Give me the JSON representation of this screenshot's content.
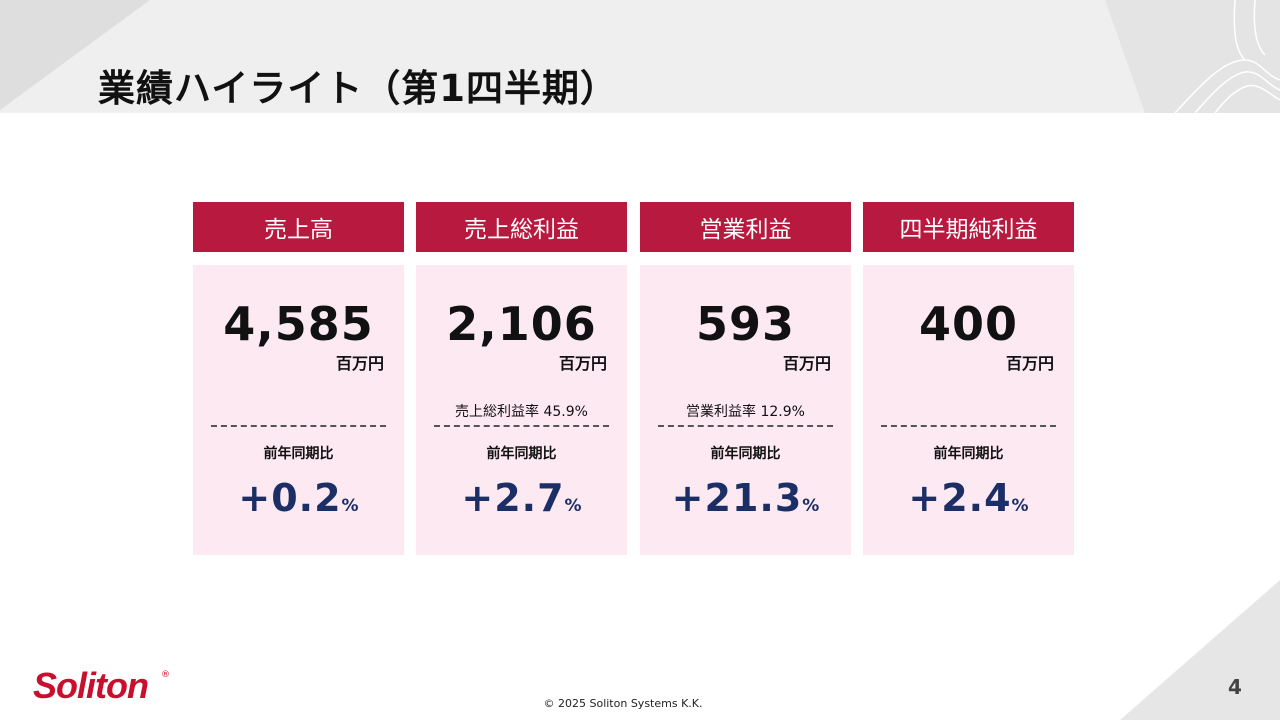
{
  "title": "業績ハイライト（第1四半期）",
  "cards": [
    {
      "header": "売上高",
      "value": "4,585",
      "unit": "百万円",
      "margin": "",
      "yoy_label": "前年同期比",
      "yoy_value": "+0.2",
      "yoy_unit": "%"
    },
    {
      "header": "売上総利益",
      "value": "2,106",
      "unit": "百万円",
      "margin": "売上総利益率  45.9%",
      "yoy_label": "前年同期比",
      "yoy_value": "+2.7",
      "yoy_unit": "%"
    },
    {
      "header": "営業利益",
      "value": "593",
      "unit": "百万円",
      "margin": "営業利益率  12.9%",
      "yoy_label": "前年同期比",
      "yoy_value": "+21.3",
      "yoy_unit": "%"
    },
    {
      "header": "四半期純利益",
      "value": "400",
      "unit": "百万円",
      "margin": "",
      "yoy_label": "前年同期比",
      "yoy_value": "+2.4",
      "yoy_unit": "%"
    }
  ],
  "footer": {
    "logo": "Soliton",
    "logo_mark": "®",
    "copyright": "© 2025 Soliton Systems K.K.",
    "page_number": "4"
  },
  "colors": {
    "header_red": "#b8193f",
    "card_pink": "#fde9f2",
    "yoy_navy": "#1b2f66",
    "logo_red": "#c8102e"
  }
}
